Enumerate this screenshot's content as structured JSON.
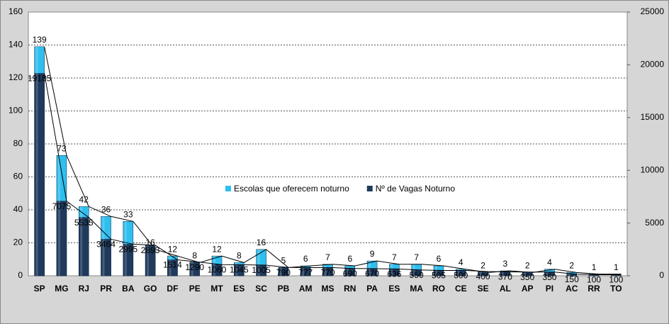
{
  "chart_data": {
    "type": "bar",
    "categories": [
      "SP",
      "MG",
      "RJ",
      "PR",
      "BA",
      "GO",
      "DF",
      "PE",
      "MT",
      "ES",
      "SC",
      "PB",
      "AM",
      "MS",
      "RN",
      "PA",
      "ES",
      "MA",
      "RO",
      "CE",
      "SE",
      "AL",
      "AP",
      "PI",
      "AC",
      "RR",
      "TO"
    ],
    "series": [
      {
        "name": "Escolas que oferecem noturno",
        "color": "#2fbfef",
        "values": [
          139,
          73,
          42,
          36,
          33,
          16,
          12,
          8,
          12,
          8,
          16,
          5,
          6,
          7,
          6,
          9,
          7,
          7,
          6,
          4,
          2,
          3,
          2,
          4,
          2,
          1,
          1
        ]
      },
      {
        "name": "Nº de Vagas  Noturno",
        "color": "#1f3a5c",
        "axis": "y2",
        "values": [
          19185,
          7075,
          5535,
          3464,
          2995,
          2893,
          1514,
          1290,
          1060,
          1045,
          1005,
          790,
          777,
          770,
          690,
          670,
          636,
          550,
          505,
          500,
          400,
          370,
          350,
          350,
          150,
          100,
          100
        ]
      }
    ],
    "ylim": [
      0,
      160
    ],
    "yticks": [
      0,
      20,
      40,
      60,
      80,
      100,
      120,
      140,
      160
    ],
    "y2lim": [
      0,
      25000
    ],
    "y2ticks": [
      0,
      5000,
      10000,
      15000,
      20000,
      25000
    ],
    "grid": true
  }
}
